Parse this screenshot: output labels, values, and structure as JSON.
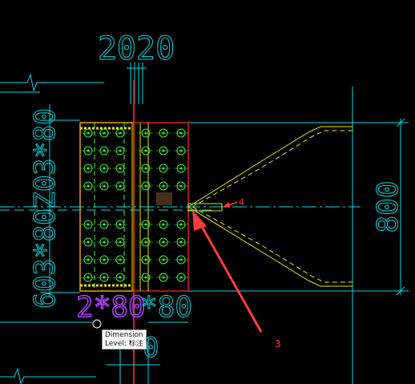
{
  "drawing": {
    "dim_top": "2020",
    "dim_right": "800",
    "dim_left": "603*80Z03*80",
    "dim_bottom_purple": "2*80",
    "dim_bottom_cyan": "*80",
    "dim_bottom_extra": "0",
    "callout_small": "4",
    "callout_large": "3"
  },
  "tooltip": {
    "title": "Dimension",
    "level_label": "Level: 标注"
  },
  "colors": {
    "background": "#000000",
    "cyan": "#00d8e0",
    "yellow": "#e6e600",
    "green": "#3cf03c",
    "red_line": "#d62020",
    "purple": "#b040ff",
    "arrow": "#ff3b3b"
  }
}
